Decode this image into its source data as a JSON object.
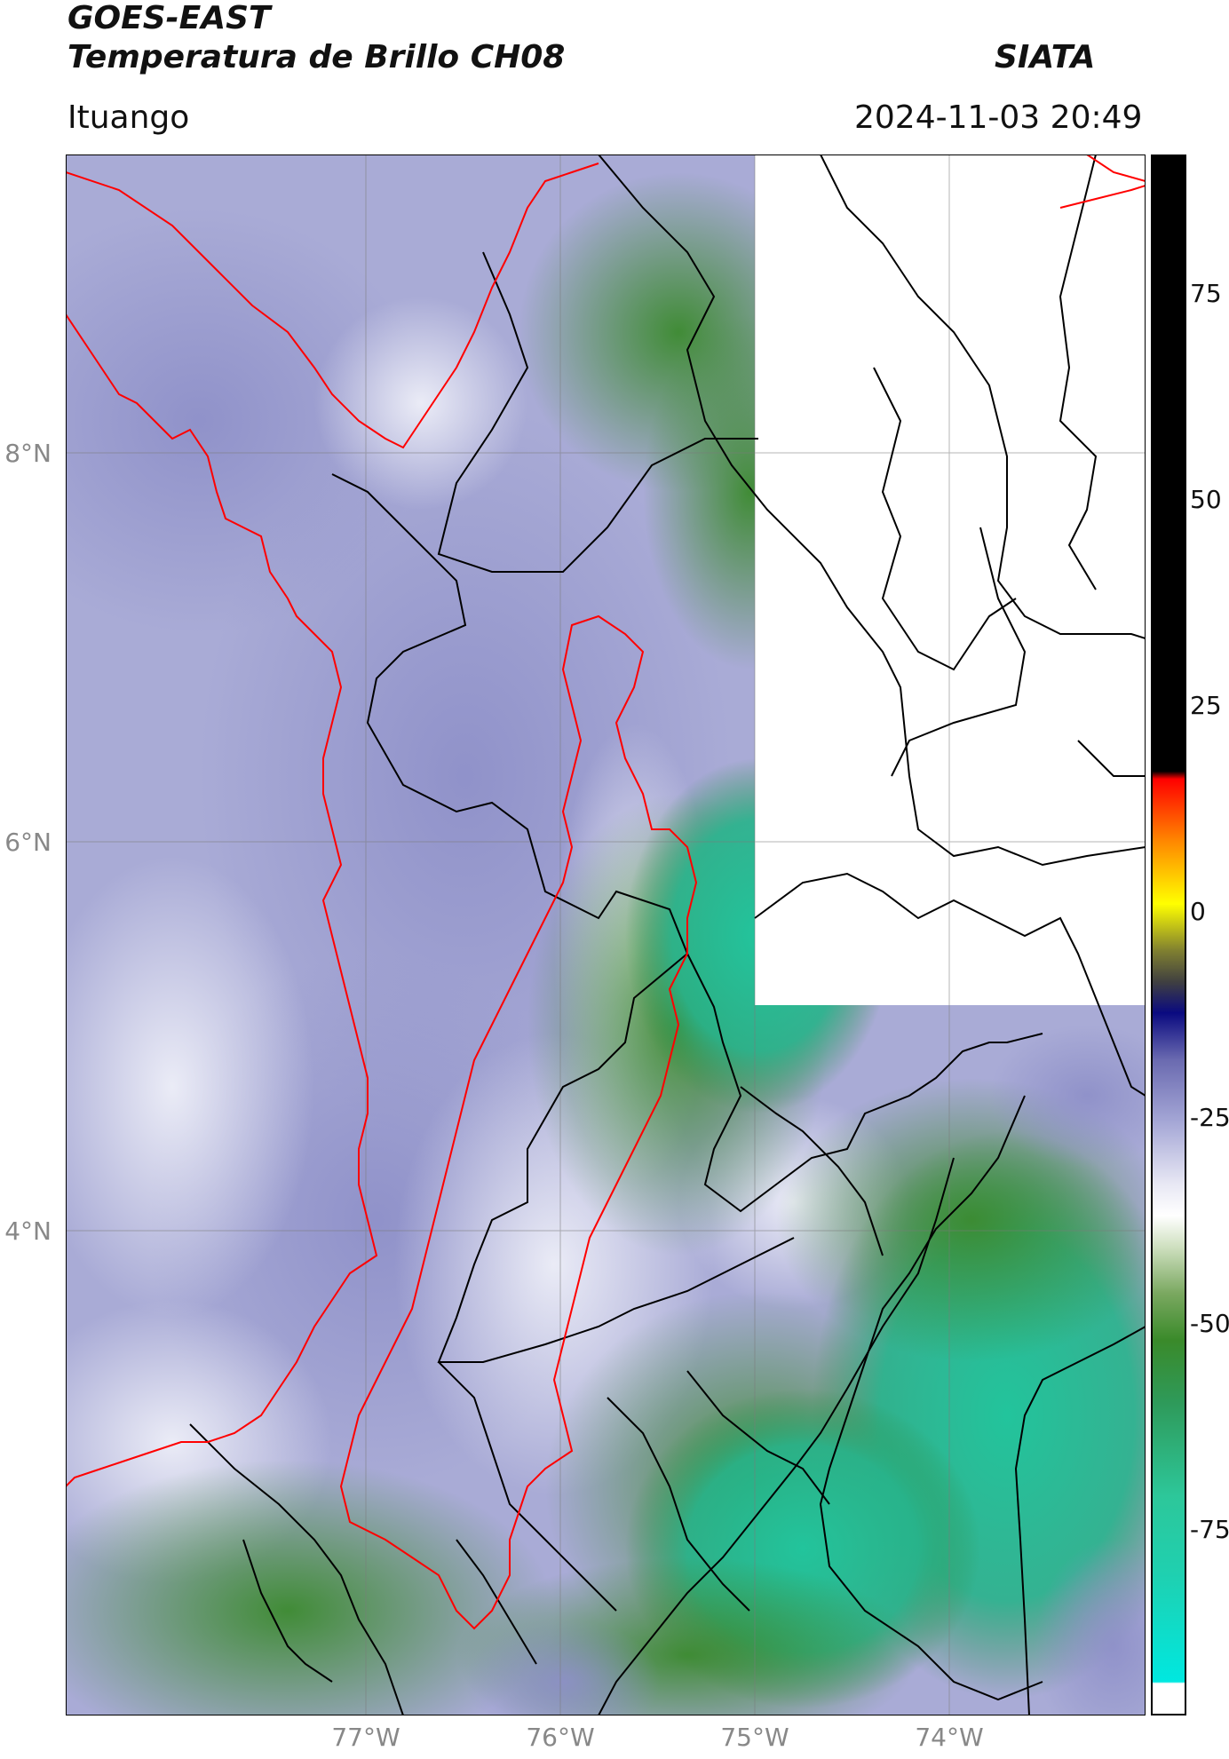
{
  "header": {
    "satellite": "GOES-EAST",
    "product": "Temperatura de Brillo CH08",
    "brand": "SIATA",
    "region": "Ituango",
    "datetime": "2024-11-03 20:49"
  },
  "map": {
    "lat_ticks": [
      "8°N",
      "6°N",
      "4°N"
    ],
    "lon_ticks": [
      "77°W",
      "76°W",
      "75°W",
      "74°W"
    ],
    "extent": {
      "lon_min": -78.55,
      "lon_max": -73.0,
      "lat_min": 2.3,
      "lat_max": 9.55
    },
    "missing_data_region": {
      "lon_range": [
        -75.0,
        -73.0
      ],
      "lat_range": [
        5.15,
        9.55
      ]
    },
    "colors": {
      "basin_outline": "#ff0000",
      "boundary_lines": "#000000",
      "cloud_cold": "#5a5fa8",
      "clear_warm": "#1dbf96",
      "vegetation_green": "#3b8a2e"
    }
  },
  "colorbar": {
    "ticks": [
      "75",
      "50",
      "25",
      "0",
      "-25",
      "-50",
      "-75"
    ],
    "range": [
      -98,
      92
    ],
    "colors": [
      "#e8e8e8",
      "#00e8e0",
      "#2dc79a",
      "#3a8a2a",
      "#cfe0c0",
      "#ffffff",
      "#6a6ab0",
      "#0a0a80",
      "#404040",
      "#ffff00",
      "#ff8800",
      "#ff0000",
      "#000000"
    ]
  }
}
